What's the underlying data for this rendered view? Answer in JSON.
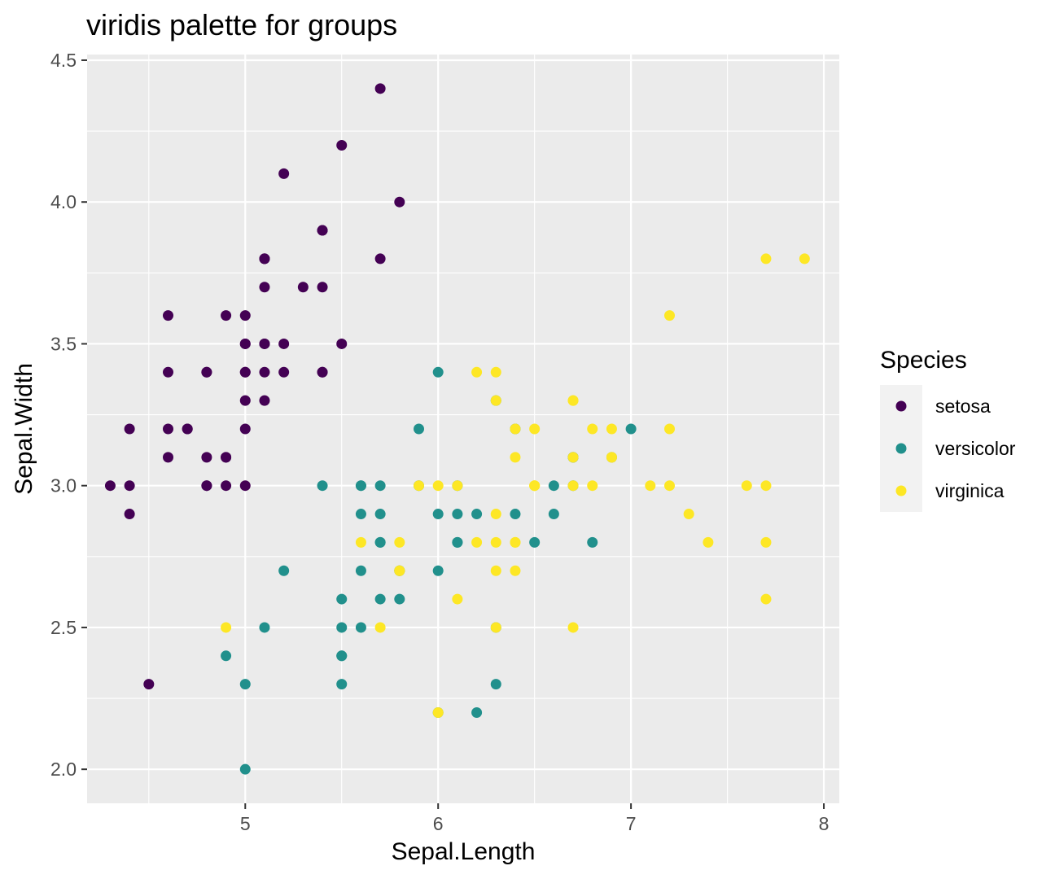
{
  "chart_data": {
    "type": "scatter",
    "title": "viridis palette for groups",
    "xlabel": "Sepal.Length",
    "ylabel": "Sepal.Width",
    "xlim": [
      4.18,
      8.08
    ],
    "ylim": [
      1.88,
      4.52
    ],
    "xticks": [
      5,
      6,
      7,
      8
    ],
    "yticks": [
      2.0,
      2.5,
      3.0,
      3.5,
      4.0,
      4.5
    ],
    "xtick_labels": [
      "5",
      "6",
      "7",
      "8"
    ],
    "ytick_labels": [
      "2.0",
      "2.5",
      "3.0",
      "3.5",
      "4.0",
      "4.5"
    ],
    "grid": true,
    "legend": {
      "title": "Species",
      "position": "right"
    },
    "series": [
      {
        "name": "setosa",
        "color": "#440154",
        "x": [
          5.1,
          4.9,
          4.7,
          4.6,
          5.0,
          5.4,
          4.6,
          5.0,
          4.4,
          4.9,
          5.4,
          4.8,
          4.8,
          4.3,
          5.8,
          5.7,
          5.4,
          5.1,
          5.7,
          5.1,
          5.4,
          5.1,
          4.6,
          5.1,
          4.8,
          5.0,
          5.0,
          5.2,
          5.2,
          4.7,
          4.8,
          5.4,
          5.2,
          5.5,
          4.9,
          5.0,
          5.5,
          4.9,
          4.4,
          5.1,
          5.0,
          4.5,
          4.4,
          5.0,
          5.1,
          4.8,
          5.1,
          4.6,
          5.3,
          5.0
        ],
        "y": [
          3.5,
          3.0,
          3.2,
          3.1,
          3.6,
          3.9,
          3.4,
          3.4,
          2.9,
          3.1,
          3.7,
          3.4,
          3.0,
          3.0,
          4.0,
          4.4,
          3.9,
          3.5,
          3.8,
          3.8,
          3.4,
          3.7,
          3.6,
          3.3,
          3.4,
          3.0,
          3.4,
          3.5,
          3.4,
          3.2,
          3.1,
          3.4,
          4.1,
          4.2,
          3.1,
          3.2,
          3.5,
          3.6,
          3.0,
          3.4,
          3.5,
          2.3,
          3.2,
          3.5,
          3.8,
          3.0,
          3.8,
          3.2,
          3.7,
          3.3
        ]
      },
      {
        "name": "versicolor",
        "color": "#21908C",
        "x": [
          7.0,
          6.4,
          6.9,
          5.5,
          6.5,
          5.7,
          6.3,
          4.9,
          6.6,
          5.2,
          5.0,
          5.9,
          6.0,
          6.1,
          5.6,
          6.7,
          5.6,
          5.8,
          6.2,
          5.6,
          5.9,
          6.1,
          6.3,
          6.1,
          6.4,
          6.6,
          6.8,
          6.7,
          6.0,
          5.7,
          5.5,
          5.5,
          5.8,
          6.0,
          5.4,
          6.0,
          6.7,
          6.3,
          5.6,
          5.5,
          5.5,
          6.1,
          5.8,
          5.0,
          5.6,
          5.7,
          5.7,
          6.2,
          5.1,
          5.7
        ],
        "y": [
          3.2,
          3.2,
          3.1,
          2.3,
          2.8,
          2.8,
          3.3,
          2.4,
          2.9,
          2.7,
          2.0,
          3.0,
          2.2,
          2.9,
          2.9,
          3.1,
          3.0,
          2.7,
          2.2,
          2.5,
          3.2,
          2.8,
          2.5,
          2.8,
          2.9,
          3.0,
          2.8,
          3.0,
          2.9,
          2.6,
          2.4,
          2.4,
          2.7,
          2.7,
          3.0,
          3.4,
          3.1,
          2.3,
          3.0,
          2.5,
          2.6,
          3.0,
          2.6,
          2.3,
          2.7,
          3.0,
          2.9,
          2.9,
          2.5,
          2.8
        ]
      },
      {
        "name": "virginica",
        "color": "#FDE725",
        "x": [
          6.3,
          5.8,
          7.1,
          6.3,
          6.5,
          7.6,
          4.9,
          7.3,
          6.7,
          7.2,
          6.5,
          6.4,
          6.8,
          5.7,
          5.8,
          6.4,
          6.5,
          7.7,
          7.7,
          6.0,
          6.9,
          5.6,
          7.7,
          6.3,
          6.7,
          7.2,
          6.2,
          6.1,
          6.4,
          7.2,
          7.4,
          7.9,
          6.4,
          6.3,
          6.1,
          7.7,
          6.3,
          6.4,
          6.0,
          6.9,
          6.7,
          6.9,
          5.8,
          6.8,
          6.7,
          6.7,
          6.3,
          6.5,
          6.2,
          5.9
        ],
        "y": [
          3.3,
          2.7,
          3.0,
          2.9,
          3.0,
          3.0,
          2.5,
          2.9,
          2.5,
          3.6,
          3.2,
          2.7,
          3.0,
          2.5,
          2.8,
          3.2,
          3.0,
          3.8,
          2.6,
          2.2,
          3.2,
          2.8,
          2.8,
          2.7,
          3.3,
          3.2,
          2.8,
          3.0,
          2.8,
          3.0,
          2.8,
          3.8,
          2.8,
          2.8,
          2.6,
          3.0,
          3.4,
          3.1,
          3.0,
          3.1,
          3.1,
          3.1,
          2.7,
          3.2,
          3.3,
          3.0,
          2.5,
          3.0,
          3.4,
          3.0
        ]
      }
    ]
  },
  "colors": {
    "panel_background": "#EBEBEB",
    "grid_major": "#FFFFFF",
    "legend_key_background": "#F2F2F2"
  }
}
